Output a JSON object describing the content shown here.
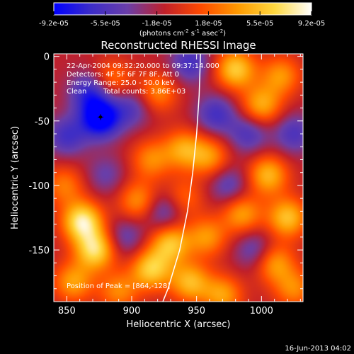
{
  "chart_data": {
    "type": "heatmap",
    "title": "Reconstructed RHESSI Image",
    "xlabel": "Heliocentric X (arcsec)",
    "ylabel": "Heliocentric Y (arcsec)",
    "xlim": [
      840,
      1032
    ],
    "ylim": [
      -190,
      2
    ],
    "xticks": [
      850,
      900,
      950,
      1000
    ],
    "yticks": [
      0,
      -50,
      -100,
      -150
    ],
    "colorbar": {
      "ticks": [
        "-9.2e-05",
        "-5.5e-05",
        "-1.8e-05",
        "1.8e-05",
        "5.5e-05",
        "9.2e-05"
      ],
      "unit_label": "(photons cm",
      "unit_exp1": "-2",
      "unit_mid": " s",
      "unit_exp2": "-1",
      "unit_mid2": " asec",
      "unit_exp3": "-2",
      "unit_close": ")",
      "colors": [
        "#0000ff",
        "#3b2cc8",
        "#6a3ea8",
        "#c0202a",
        "#ff4a00",
        "#ff9a00",
        "#ffd840",
        "#ffffff"
      ]
    },
    "annotations": {
      "line1": "22-Apr-2004 09:32:20.000 to 09:37:14.000",
      "line2": "Detectors: 4F 5F 6F 7F 8F, Att 0",
      "line3": "Energy Range: 25.0 - 50.0 keV",
      "line4a": "Clean",
      "line4b": "Total counts: 3.86E+03",
      "peak": "Position of Peak = [864,-128]"
    },
    "blobs": [
      {
        "x": 876,
        "y": -48,
        "v": -1.0
      },
      {
        "x": 868,
        "y": -28,
        "v": -0.6
      },
      {
        "x": 850,
        "y": -62,
        "v": -0.5
      },
      {
        "x": 900,
        "y": -40,
        "v": -0.4
      },
      {
        "x": 945,
        "y": -5,
        "v": -0.5
      },
      {
        "x": 965,
        "y": -45,
        "v": -0.5
      },
      {
        "x": 960,
        "y": -78,
        "v": 0.55
      },
      {
        "x": 990,
        "y": -60,
        "v": -0.45
      },
      {
        "x": 940,
        "y": -72,
        "v": 0.6
      },
      {
        "x": 915,
        "y": -80,
        "v": 0.5
      },
      {
        "x": 905,
        "y": -112,
        "v": 0.55
      },
      {
        "x": 885,
        "y": -18,
        "v": 0.45
      },
      {
        "x": 920,
        "y": -28,
        "v": 0.5
      },
      {
        "x": 980,
        "y": -10,
        "v": 0.8
      },
      {
        "x": 1015,
        "y": -15,
        "v": 0.55
      },
      {
        "x": 1000,
        "y": -38,
        "v": 0.65
      },
      {
        "x": 1025,
        "y": -60,
        "v": -0.45
      },
      {
        "x": 1005,
        "y": -92,
        "v": 0.7
      },
      {
        "x": 975,
        "y": -100,
        "v": -0.4
      },
      {
        "x": 985,
        "y": -122,
        "v": 0.6
      },
      {
        "x": 1020,
        "y": -125,
        "v": 0.75
      },
      {
        "x": 1010,
        "y": -160,
        "v": 0.6
      },
      {
        "x": 1025,
        "y": -180,
        "v": 0.5
      },
      {
        "x": 958,
        "y": -140,
        "v": 0.55
      },
      {
        "x": 930,
        "y": -145,
        "v": 0.75
      },
      {
        "x": 915,
        "y": -165,
        "v": 0.8
      },
      {
        "x": 945,
        "y": -175,
        "v": 0.7
      },
      {
        "x": 970,
        "y": -185,
        "v": 0.6
      },
      {
        "x": 862,
        "y": -128,
        "v": 1.0
      },
      {
        "x": 872,
        "y": -150,
        "v": 0.9
      },
      {
        "x": 855,
        "y": -175,
        "v": 0.6
      },
      {
        "x": 890,
        "y": -182,
        "v": 0.5
      },
      {
        "x": 848,
        "y": -100,
        "v": 0.45
      },
      {
        "x": 925,
        "y": -120,
        "v": -0.45
      },
      {
        "x": 880,
        "y": -92,
        "v": -0.3
      },
      {
        "x": 940,
        "y": -110,
        "v": 0.4
      },
      {
        "x": 995,
        "y": -150,
        "v": -0.4
      },
      {
        "x": 895,
        "y": -140,
        "v": -0.35
      }
    ],
    "marker": {
      "x": 876,
      "y": -47
    },
    "limb_curve": [
      [
        953,
        2
      ],
      [
        952,
        -30
      ],
      [
        950,
        -60
      ],
      [
        947,
        -90
      ],
      [
        943,
        -120
      ],
      [
        937,
        -150
      ],
      [
        928,
        -180
      ],
      [
        924,
        -190
      ]
    ]
  },
  "footer": {
    "date": "16-Jun-2013 04:02"
  }
}
